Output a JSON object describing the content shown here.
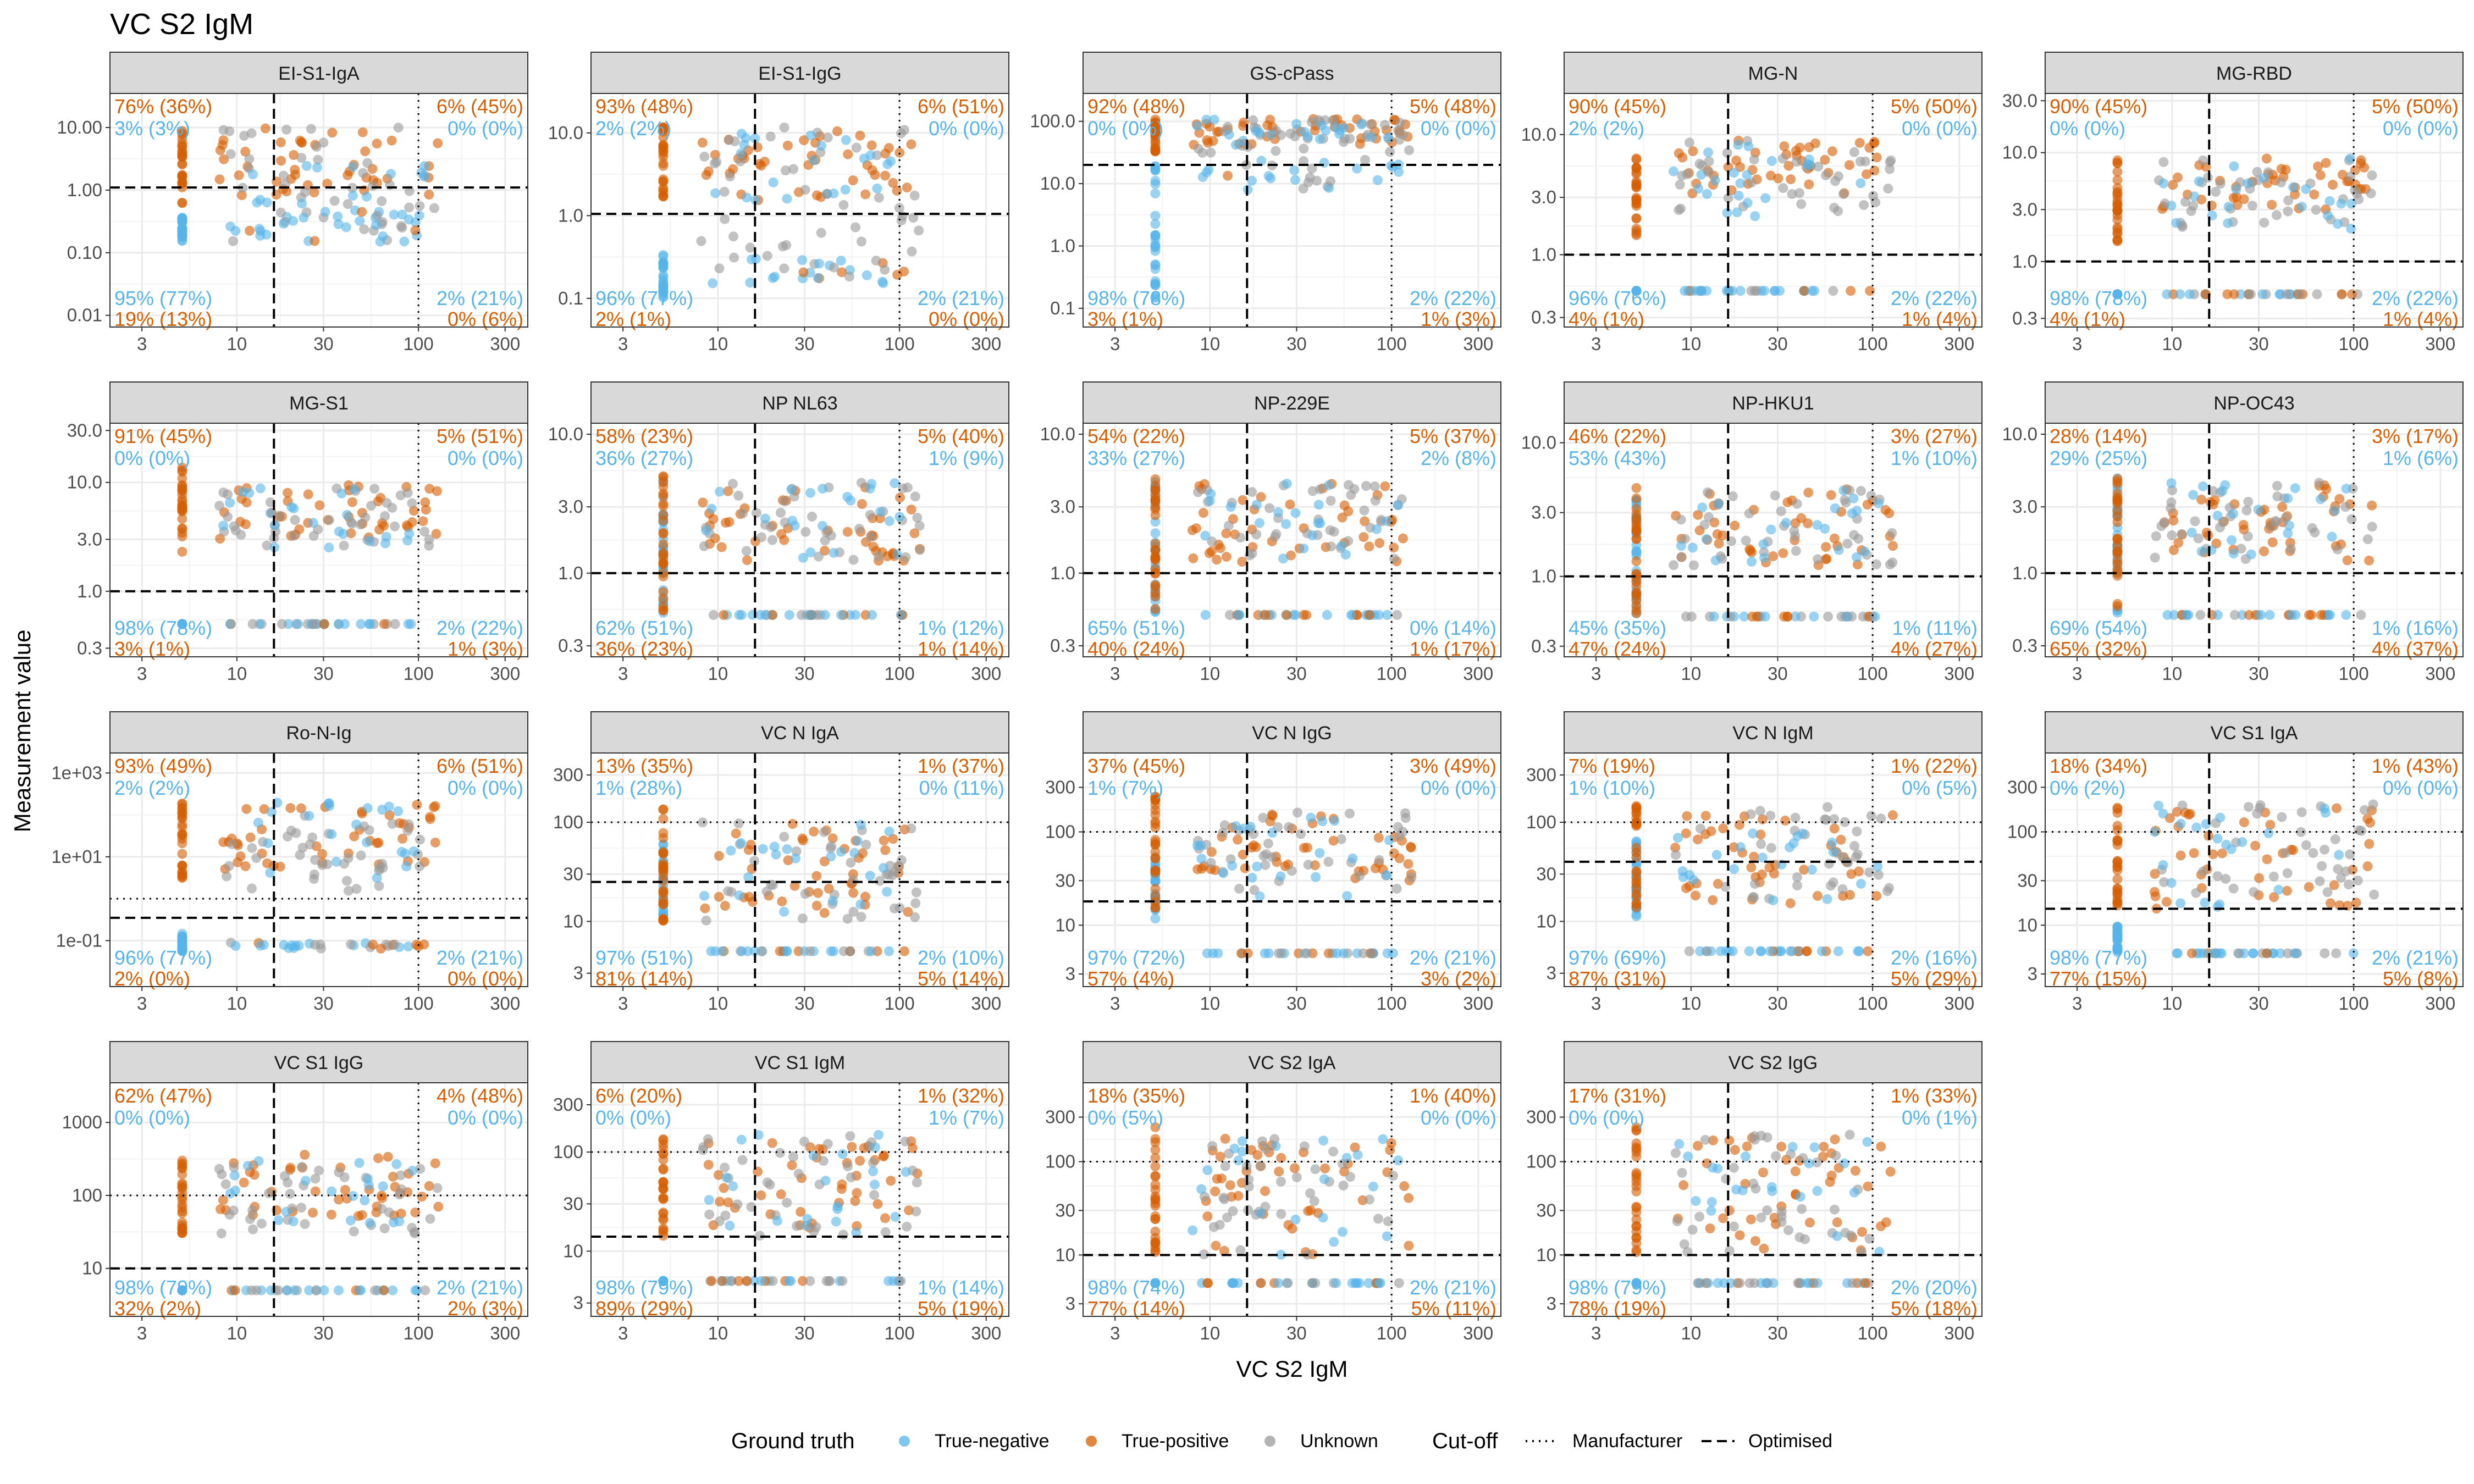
{
  "title": "VC S2 IgM",
  "x_axis_label": "VC S2 IgM",
  "y_axis_label": "Measurement value",
  "colors": {
    "true_negative": "#56B4E9",
    "true_positive": "#D55E00",
    "unknown": "#999999",
    "strip_bg": "#D9D9D9",
    "grid": "#EBEBEB"
  },
  "legend": {
    "ground_truth_title": "Ground truth",
    "ground_truth_items": [
      "True-negative",
      "True-positive",
      "Unknown"
    ],
    "cutoff_title": "Cut-off",
    "cutoff_items": [
      "Manufacturer",
      "Optimised"
    ]
  },
  "chart_data": {
    "type": "scatter",
    "x_scale": "log",
    "x_range": [
      2,
      400
    ],
    "x_ticks": [
      3,
      10,
      30,
      100,
      300
    ],
    "x_tick_labels": [
      "3",
      "10",
      "30",
      "100",
      "300"
    ],
    "x_cutoffs": {
      "optimised": 16,
      "manufacturer": 100
    },
    "panels": [
      {
        "name": "EI-S1-IgA",
        "y_ticks": [
          0.01,
          0.1,
          1,
          10
        ],
        "y_tick_labels": [
          "0.01",
          "0.10",
          "1.00",
          "10.00"
        ],
        "y_range": [
          0.0065,
          35
        ],
        "y_opt": 1.1,
        "y_man": null,
        "neg_y": [
          0.15,
          0.4
        ],
        "pos_y": [
          0.6,
          10
        ],
        "cluster_y": [
          0.3,
          2.5
        ],
        "band_y": [
          0.15,
          0.5
        ],
        "pos_cluster_y": [
          0.8,
          10
        ],
        "unk_y": [
          0.15,
          10
        ],
        "corners": {
          "tl_pos": "76% (36%)",
          "tl_neg": "3% (3%)",
          "tr_pos": "6% (45%)",
          "tr_neg": "0% (0%)",
          "bl_neg": "95% (77%)",
          "bl_pos": "19% (13%)",
          "br_neg": "2% (21%)",
          "br_pos": "0% (6%)"
        }
      },
      {
        "name": "EI-S1-IgG",
        "y_ticks": [
          0.1,
          1,
          10
        ],
        "y_tick_labels": [
          "0.1",
          "1.0",
          "10.0"
        ],
        "y_range": [
          0.045,
          30
        ],
        "y_opt": 1.05,
        "y_man": null,
        "neg_y": [
          0.1,
          0.35
        ],
        "pos_y": [
          1.5,
          12
        ],
        "cluster_y": [
          1.5,
          12
        ],
        "band_y": [
          0.15,
          0.3
        ],
        "pos_cluster_y": [
          1.5,
          12
        ],
        "unk_y": [
          0.3,
          12
        ],
        "corners": {
          "tl_pos": "93% (48%)",
          "tl_neg": "2% (2%)",
          "tr_pos": "6% (51%)",
          "tr_neg": "0% (0%)",
          "bl_neg": "96% (77%)",
          "bl_pos": "2% (1%)",
          "br_neg": "2% (21%)",
          "br_pos": "0% (0%)"
        }
      },
      {
        "name": "GS-cPass",
        "y_ticks": [
          0.1,
          1,
          10,
          100
        ],
        "y_tick_labels": [
          "0.1",
          "1.0",
          "10.0",
          "100.0"
        ],
        "y_range": [
          0.05,
          280
        ],
        "y_opt": 20,
        "y_man": null,
        "neg_y": [
          0.08,
          20
        ],
        "pos_y": [
          30,
          110
        ],
        "cluster_y": [
          40,
          110
        ],
        "band_y": [
          8,
          25
        ],
        "pos_cluster_y": [
          40,
          110
        ],
        "unk_y": [
          30,
          110
        ],
        "corners": {
          "tl_pos": "92% (48%)",
          "tl_neg": "0% (0%)",
          "tr_pos": "5% (48%)",
          "tr_neg": "0% (0%)",
          "bl_neg": "98% (78%)",
          "bl_pos": "3% (1%)",
          "br_neg": "2% (22%)",
          "br_pos": "1% (3%)"
        }
      },
      {
        "name": "MG-N",
        "y_ticks": [
          0.3,
          1,
          3,
          10
        ],
        "y_tick_labels": [
          "0.3",
          "1.0",
          "3.0",
          "10.0"
        ],
        "y_range": [
          0.25,
          22
        ],
        "y_opt": 1.0,
        "y_man": null,
        "neg_y": [
          0.5,
          0.5
        ],
        "pos_y": [
          1.3,
          10
        ],
        "cluster_y": [
          2,
          9
        ],
        "band_y": [
          0.5,
          0.5
        ],
        "pos_cluster_y": [
          3,
          9
        ],
        "unk_y": [
          2,
          9
        ],
        "corners": {
          "tl_pos": "90% (45%)",
          "tl_neg": "2% (2%)",
          "tr_pos": "5% (50%)",
          "tr_neg": "0% (0%)",
          "bl_neg": "96% (76%)",
          "bl_pos": "4% (1%)",
          "br_neg": "2% (22%)",
          "br_pos": "1% (4%)"
        }
      },
      {
        "name": "MG-RBD",
        "y_ticks": [
          0.3,
          1,
          3,
          10,
          30
        ],
        "y_tick_labels": [
          "0.3",
          "1.0",
          "3.0",
          "10.0",
          "30.0"
        ],
        "y_range": [
          0.25,
          35
        ],
        "y_opt": 1.0,
        "y_man": null,
        "neg_y": [
          0.5,
          0.5
        ],
        "pos_y": [
          1.5,
          10
        ],
        "cluster_y": [
          2,
          9
        ],
        "band_y": [
          0.5,
          0.5
        ],
        "pos_cluster_y": [
          3,
          9
        ],
        "unk_y": [
          2,
          9
        ],
        "corners": {
          "tl_pos": "90% (45%)",
          "tl_neg": "0% (0%)",
          "tr_pos": "5% (50%)",
          "tr_neg": "0% (0%)",
          "bl_neg": "98% (78%)",
          "bl_pos": "4% (1%)",
          "br_neg": "2% (22%)",
          "br_pos": "1% (4%)"
        }
      },
      {
        "name": "MG-S1",
        "y_ticks": [
          0.3,
          1,
          3,
          10,
          30
        ],
        "y_tick_labels": [
          "0.3",
          "1.0",
          "3.0",
          "10.0",
          "30.0"
        ],
        "y_range": [
          0.25,
          35
        ],
        "y_opt": 1.0,
        "y_man": null,
        "neg_y": [
          0.5,
          0.5
        ],
        "pos_y": [
          2,
          14
        ],
        "cluster_y": [
          2.5,
          10
        ],
        "band_y": [
          0.5,
          0.5
        ],
        "pos_cluster_y": [
          3,
          10
        ],
        "unk_y": [
          2.5,
          9
        ],
        "corners": {
          "tl_pos": "91% (45%)",
          "tl_neg": "0% (0%)",
          "tr_pos": "5% (51%)",
          "tr_neg": "0% (0%)",
          "bl_neg": "98% (78%)",
          "bl_pos": "3% (1%)",
          "br_neg": "2% (22%)",
          "br_pos": "1% (3%)"
        }
      },
      {
        "name": "NP NL63",
        "y_ticks": [
          0.3,
          1,
          3,
          10
        ],
        "y_tick_labels": [
          "0.3",
          "1.0",
          "3.0",
          "10.0"
        ],
        "y_range": [
          0.25,
          12
        ],
        "y_opt": 1.0,
        "y_man": null,
        "neg_y": [
          0.5,
          5
        ],
        "pos_y": [
          0.5,
          5
        ],
        "cluster_y": [
          1.2,
          4.5
        ],
        "band_y": [
          0.5,
          0.5
        ],
        "pos_cluster_y": [
          1.2,
          4.5
        ],
        "unk_y": [
          1.2,
          4.5
        ],
        "corners": {
          "tl_pos": "58% (23%)",
          "tl_neg": "36% (27%)",
          "tr_pos": "5% (40%)",
          "tr_neg": "1% (9%)",
          "bl_neg": "62% (51%)",
          "bl_pos": "36% (23%)",
          "br_neg": "1% (12%)",
          "br_pos": "1% (14%)"
        }
      },
      {
        "name": "NP-229E",
        "y_ticks": [
          0.3,
          1,
          3,
          10
        ],
        "y_tick_labels": [
          "0.3",
          "1.0",
          "3.0",
          "10.0"
        ],
        "y_range": [
          0.25,
          12
        ],
        "y_opt": 1.0,
        "y_man": null,
        "neg_y": [
          0.5,
          5
        ],
        "pos_y": [
          0.5,
          5
        ],
        "cluster_y": [
          1.2,
          4.5
        ],
        "band_y": [
          0.5,
          0.5
        ],
        "pos_cluster_y": [
          1.2,
          4.5
        ],
        "unk_y": [
          1.2,
          4.5
        ],
        "corners": {
          "tl_pos": "54% (22%)",
          "tl_neg": "33% (27%)",
          "tr_pos": "5% (37%)",
          "tr_neg": "2% (8%)",
          "bl_neg": "65% (51%)",
          "bl_pos": "40% (24%)",
          "br_neg": "0% (14%)",
          "br_pos": "1% (17%)"
        }
      },
      {
        "name": "NP-HKU1",
        "y_ticks": [
          0.3,
          1,
          3,
          10
        ],
        "y_tick_labels": [
          "0.3",
          "1.0",
          "3.0",
          "10.0"
        ],
        "y_range": [
          0.25,
          14
        ],
        "y_opt": 1.0,
        "y_man": null,
        "neg_y": [
          0.5,
          5
        ],
        "pos_y": [
          0.5,
          5
        ],
        "cluster_y": [
          1.2,
          4.5
        ],
        "band_y": [
          0.5,
          0.5
        ],
        "pos_cluster_y": [
          1.2,
          4.5
        ],
        "unk_y": [
          1.2,
          4.5
        ],
        "corners": {
          "tl_pos": "46% (22%)",
          "tl_neg": "53% (43%)",
          "tr_pos": "3% (27%)",
          "tr_neg": "1% (10%)",
          "bl_neg": "45% (35%)",
          "bl_pos": "47% (24%)",
          "br_neg": "1% (11%)",
          "br_pos": "4% (27%)"
        }
      },
      {
        "name": "NP-OC43",
        "y_ticks": [
          0.3,
          1,
          3,
          10
        ],
        "y_tick_labels": [
          "0.3",
          "1.0",
          "3.0",
          "10.0"
        ],
        "y_range": [
          0.25,
          12
        ],
        "y_opt": 1.0,
        "y_man": null,
        "neg_y": [
          0.5,
          5
        ],
        "pos_y": [
          0.5,
          5
        ],
        "cluster_y": [
          1.2,
          4.5
        ],
        "band_y": [
          0.5,
          0.5
        ],
        "pos_cluster_y": [
          1.2,
          4.5
        ],
        "unk_y": [
          1.2,
          4.5
        ],
        "corners": {
          "tl_pos": "28% (14%)",
          "tl_neg": "29% (25%)",
          "tr_pos": "3% (17%)",
          "tr_neg": "1% (6%)",
          "bl_neg": "69% (54%)",
          "bl_pos": "65% (32%)",
          "br_neg": "1% (16%)",
          "br_pos": "4% (37%)"
        }
      },
      {
        "name": "Ro-N-Ig",
        "y_ticks": [
          0.1,
          10,
          1000
        ],
        "y_tick_labels": [
          "1e-01",
          "1e+01",
          "1e+03"
        ],
        "y_range": [
          0.008,
          3000
        ],
        "y_opt": 0.35,
        "y_man": 1.0,
        "neg_y": [
          0.05,
          0.15
        ],
        "pos_y": [
          3,
          200
        ],
        "cluster_y": [
          3,
          200
        ],
        "band_y": [
          0.06,
          0.09
        ],
        "pos_cluster_y": [
          5,
          200
        ],
        "unk_y": [
          1.5,
          100
        ],
        "corners": {
          "tl_pos": "93% (49%)",
          "tl_neg": "2% (2%)",
          "tr_pos": "6% (51%)",
          "tr_neg": "0% (0%)",
          "bl_neg": "96% (77%)",
          "bl_pos": "2% (0%)",
          "br_neg": "2% (21%)",
          "br_pos": "0% (0%)"
        }
      },
      {
        "name": "VC N IgA",
        "y_ticks": [
          3,
          10,
          30,
          100,
          300
        ],
        "y_tick_labels": [
          "3",
          "10",
          "30",
          "100",
          "300"
        ],
        "y_range": [
          2.2,
          500
        ],
        "y_opt": 25,
        "y_man": 100,
        "neg_y": [
          10,
          80
        ],
        "pos_y": [
          10,
          150
        ],
        "cluster_y": [
          12,
          100
        ],
        "band_y": [
          5,
          5
        ],
        "pos_cluster_y": [
          12,
          100
        ],
        "unk_y": [
          10,
          100
        ],
        "corners": {
          "tl_pos": "13% (35%)",
          "tl_neg": "1% (28%)",
          "tr_pos": "1% (37%)",
          "tr_neg": "0% (11%)",
          "bl_neg": "97% (51%)",
          "bl_pos": "81% (14%)",
          "br_neg": "2% (10%)",
          "br_pos": "5% (14%)"
        }
      },
      {
        "name": "VC N IgG",
        "y_ticks": [
          3,
          10,
          30,
          100,
          300
        ],
        "y_tick_labels": [
          "3",
          "10",
          "30",
          "100",
          "300"
        ],
        "y_range": [
          2.2,
          700
        ],
        "y_opt": 18,
        "y_man": 100,
        "neg_y": [
          10,
          60
        ],
        "pos_y": [
          15,
          250
        ],
        "cluster_y": [
          20,
          150
        ],
        "band_y": [
          5,
          5
        ],
        "pos_cluster_y": [
          30,
          180
        ],
        "unk_y": [
          20,
          180
        ],
        "corners": {
          "tl_pos": "37% (45%)",
          "tl_neg": "1% (7%)",
          "tr_pos": "3% (49%)",
          "tr_neg": "0% (0%)",
          "bl_neg": "97% (72%)",
          "bl_pos": "57% (4%)",
          "br_neg": "2% (21%)",
          "br_pos": "3% (2%)"
        }
      },
      {
        "name": "VC N IgM",
        "y_ticks": [
          3,
          10,
          30,
          100,
          300
        ],
        "y_tick_labels": [
          "3",
          "10",
          "30",
          "100",
          "300"
        ],
        "y_range": [
          2.2,
          500
        ],
        "y_opt": 40,
        "y_man": 100,
        "neg_y": [
          10,
          80
        ],
        "pos_y": [
          10,
          150
        ],
        "cluster_y": [
          15,
          80
        ],
        "band_y": [
          5,
          5
        ],
        "pos_cluster_y": [
          15,
          120
        ],
        "unk_y": [
          15,
          150
        ],
        "corners": {
          "tl_pos": "7% (19%)",
          "tl_neg": "1% (10%)",
          "tr_pos": "1% (22%)",
          "tr_neg": "0% (5%)",
          "bl_neg": "97% (69%)",
          "bl_pos": "87% (31%)",
          "br_neg": "2% (16%)",
          "br_pos": "5% (29%)"
        }
      },
      {
        "name": "VC S1 IgA",
        "y_ticks": [
          3,
          10,
          30,
          100,
          300
        ],
        "y_tick_labels": [
          "3",
          "10",
          "30",
          "100",
          "300"
        ],
        "y_range": [
          2.2,
          700
        ],
        "y_opt": 15,
        "y_man": 100,
        "neg_y": [
          5,
          10
        ],
        "pos_y": [
          15,
          200
        ],
        "cluster_y": [
          15,
          200
        ],
        "band_y": [
          5,
          5
        ],
        "pos_cluster_y": [
          15,
          200
        ],
        "unk_y": [
          20,
          200
        ],
        "corners": {
          "tl_pos": "18% (34%)",
          "tl_neg": "0% (2%)",
          "tr_pos": "1% (43%)",
          "tr_neg": "0% (0%)",
          "bl_neg": "98% (77%)",
          "bl_pos": "77% (15%)",
          "br_neg": "2% (21%)",
          "br_pos": "5% (8%)"
        }
      },
      {
        "name": "VC S1 IgG",
        "y_ticks": [
          10,
          100,
          1000
        ],
        "y_tick_labels": [
          "10",
          "100",
          "1000"
        ],
        "y_range": [
          2.2,
          3500
        ],
        "y_opt": 10,
        "y_man": 100,
        "neg_y": [
          5,
          5
        ],
        "pos_y": [
          25,
          300
        ],
        "cluster_y": [
          40,
          300
        ],
        "band_y": [
          5,
          5
        ],
        "pos_cluster_y": [
          50,
          400
        ],
        "unk_y": [
          30,
          250
        ],
        "corners": {
          "tl_pos": "62% (47%)",
          "tl_neg": "0% (0%)",
          "tr_pos": "4% (48%)",
          "tr_neg": "0% (0%)",
          "bl_neg": "98% (79%)",
          "bl_pos": "32% (2%)",
          "br_neg": "2% (21%)",
          "br_pos": "2% (3%)"
        }
      },
      {
        "name": "VC S1 IgM",
        "y_ticks": [
          3,
          10,
          30,
          100,
          300
        ],
        "y_tick_labels": [
          "3",
          "10",
          "30",
          "100",
          "300"
        ],
        "y_range": [
          2.2,
          500
        ],
        "y_opt": 14,
        "y_man": 100,
        "neg_y": [
          5,
          5
        ],
        "pos_y": [
          14,
          150
        ],
        "cluster_y": [
          14,
          150
        ],
        "band_y": [
          5,
          5
        ],
        "pos_cluster_y": [
          14,
          150
        ],
        "unk_y": [
          14,
          150
        ],
        "corners": {
          "tl_pos": "6% (20%)",
          "tl_neg": "0% (0%)",
          "tr_pos": "1% (32%)",
          "tr_neg": "1% (7%)",
          "bl_neg": "98% (79%)",
          "bl_pos": "89% (29%)",
          "br_neg": "1% (14%)",
          "br_pos": "5% (19%)"
        }
      },
      {
        "name": "VC S2 IgA",
        "y_ticks": [
          3,
          10,
          30,
          100,
          300
        ],
        "y_tick_labels": [
          "3",
          "10",
          "30",
          "100",
          "300"
        ],
        "y_range": [
          2.2,
          700
        ],
        "y_opt": 10,
        "y_man": 100,
        "neg_y": [
          5,
          5
        ],
        "pos_y": [
          10,
          250
        ],
        "cluster_y": [
          10,
          200
        ],
        "band_y": [
          5,
          5
        ],
        "pos_cluster_y": [
          10,
          200
        ],
        "unk_y": [
          10,
          200
        ],
        "corners": {
          "tl_pos": "18% (35%)",
          "tl_neg": "0% (5%)",
          "tr_pos": "1% (40%)",
          "tr_neg": "0% (0%)",
          "bl_neg": "98% (74%)",
          "bl_pos": "77% (14%)",
          "br_neg": "2% (21%)",
          "br_pos": "5% (11%)"
        }
      },
      {
        "name": "VC S2 IgG",
        "y_ticks": [
          3,
          10,
          30,
          100,
          300
        ],
        "y_tick_labels": [
          "3",
          "10",
          "30",
          "100",
          "300"
        ],
        "y_range": [
          2.2,
          700
        ],
        "y_opt": 10,
        "y_man": 100,
        "neg_y": [
          5,
          5
        ],
        "pos_y": [
          10,
          250
        ],
        "cluster_y": [
          10,
          200
        ],
        "band_y": [
          5,
          5
        ],
        "pos_cluster_y": [
          10,
          200
        ],
        "unk_y": [
          10,
          200
        ],
        "corners": {
          "tl_pos": "17% (31%)",
          "tl_neg": "0% (0%)",
          "tr_pos": "1% (33%)",
          "tr_neg": "0% (1%)",
          "bl_neg": "98% (79%)",
          "bl_pos": "78% (19%)",
          "br_neg": "2% (20%)",
          "br_pos": "5% (18%)"
        }
      }
    ]
  }
}
